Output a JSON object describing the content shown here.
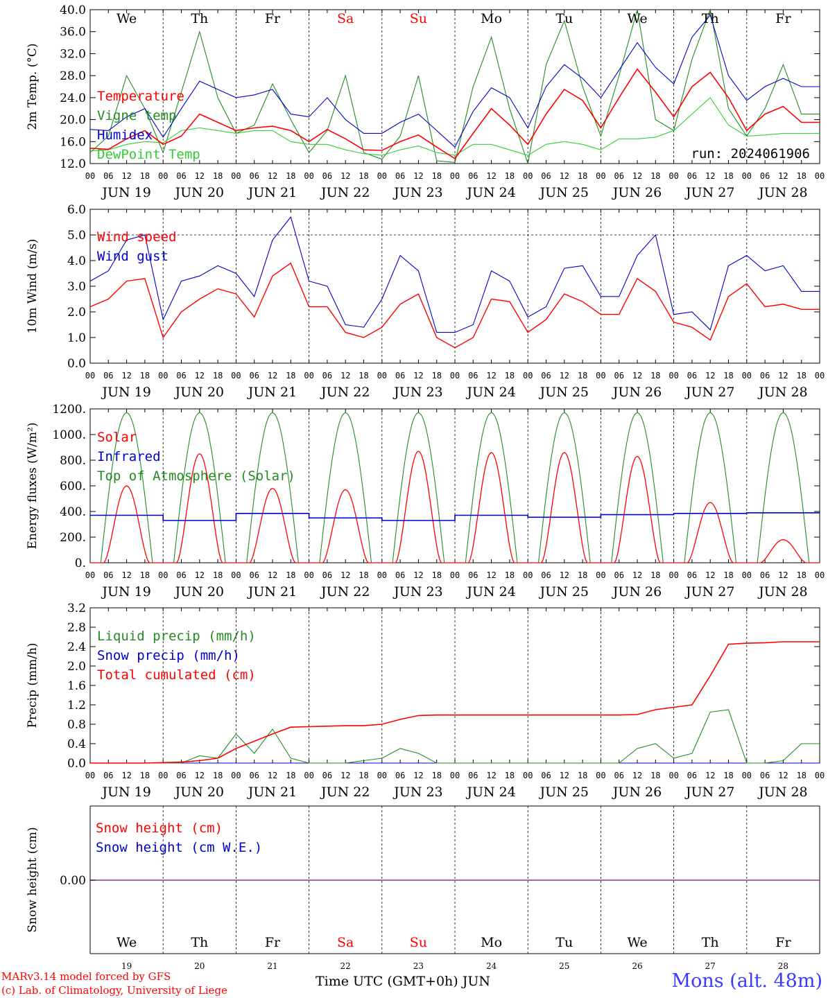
{
  "chart_data": [
    {
      "type": "line",
      "panel": "temperature",
      "ylabel": "2m Temp. (°C)",
      "ylim": [
        12,
        40
      ],
      "yticks": [
        "12.0",
        "16.0",
        "20.0",
        "24.0",
        "28.0",
        "32.0",
        "36.0",
        "40.0"
      ],
      "run_label": "run: 2024061906",
      "x_hours": [
        0,
        6,
        12,
        18,
        24,
        30,
        36,
        42,
        48,
        54,
        60,
        66,
        72,
        78,
        84,
        90,
        96,
        102,
        108,
        114,
        120,
        126,
        132,
        138,
        144,
        150,
        156,
        162,
        168,
        174,
        180,
        186,
        192,
        198,
        204,
        210,
        216,
        222,
        228,
        234
      ],
      "series": [
        {
          "name": "Temperature",
          "color": "#ff0000",
          "values": [
            14.8,
            14.6,
            16.5,
            18.0,
            15.5,
            17.0,
            21.0,
            19.5,
            18.0,
            18.5,
            18.8,
            18.0,
            16.0,
            18.2,
            16.5,
            14.5,
            14.4,
            16.0,
            17.2,
            15.0,
            12.9,
            17.5,
            22.0,
            19.0,
            15.5,
            21.0,
            25.5,
            23.5,
            18.5,
            24.0,
            29.2,
            25.0,
            20.5,
            26.0,
            28.6,
            24.0,
            18.0,
            21.0,
            22.4,
            19.5
          ]
        },
        {
          "name": "Vigne temp",
          "color": "#228b22",
          "values": [
            14.0,
            17.0,
            28.0,
            22.0,
            14.0,
            25.0,
            36.0,
            24.0,
            17.5,
            19.0,
            26.5,
            20.0,
            14.0,
            18.0,
            28.0,
            14.0,
            12.8,
            17.0,
            28.0,
            12.5,
            12.2,
            26.0,
            35.0,
            22.0,
            12.0,
            30.0,
            38.0,
            26.0,
            17.0,
            28.0,
            40.0,
            20.0,
            18.0,
            31.0,
            41.0,
            22.0,
            17.0,
            22.0,
            30.0,
            21.0
          ]
        },
        {
          "name": "Humidex",
          "color": "#0000cd",
          "values": [
            18.2,
            18.0,
            20.5,
            22.0,
            16.8,
            22.0,
            27.0,
            25.5,
            24.0,
            24.5,
            25.5,
            21.0,
            20.5,
            24.0,
            20.0,
            17.5,
            17.5,
            19.5,
            21.0,
            18.0,
            15.0,
            21.5,
            25.8,
            24.0,
            18.5,
            26.0,
            30.0,
            27.5,
            24.0,
            29.0,
            34.0,
            29.5,
            26.5,
            35.0,
            39.0,
            28.0,
            23.5,
            26.0,
            27.5,
            26.0
          ]
        },
        {
          "name": "DewPoint Temp",
          "color": "#32cd32",
          "values": [
            14.3,
            14.5,
            15.5,
            16.0,
            15.8,
            18.0,
            18.5,
            18.0,
            17.5,
            18.0,
            18.0,
            16.0,
            15.5,
            15.5,
            14.5,
            13.8,
            13.5,
            14.5,
            15.2,
            14.0,
            13.5,
            15.5,
            15.5,
            14.5,
            13.5,
            15.5,
            16.0,
            15.5,
            14.5,
            16.5,
            16.5,
            16.8,
            18.0,
            21.0,
            24.0,
            19.0,
            17.0,
            17.2,
            17.5,
            17.5
          ]
        }
      ]
    },
    {
      "type": "line",
      "panel": "wind",
      "ylabel": "10m Wind (m/s)",
      "ylim": [
        0,
        6
      ],
      "yticks": [
        "0.0",
        "1.0",
        "2.0",
        "3.0",
        "4.0",
        "5.0",
        "6.0"
      ],
      "x_hours": [
        0,
        6,
        12,
        18,
        24,
        30,
        36,
        42,
        48,
        54,
        60,
        66,
        72,
        78,
        84,
        90,
        96,
        102,
        108,
        114,
        120,
        126,
        132,
        138,
        144,
        150,
        156,
        162,
        168,
        174,
        180,
        186,
        192,
        198,
        204,
        210,
        216,
        222,
        228,
        234
      ],
      "series": [
        {
          "name": "Wind speed",
          "color": "#ff0000",
          "values": [
            2.2,
            2.5,
            3.2,
            3.3,
            1.0,
            2.0,
            2.5,
            2.9,
            2.7,
            1.8,
            3.4,
            3.9,
            2.2,
            2.2,
            1.2,
            1.0,
            1.4,
            2.3,
            2.7,
            1.0,
            0.6,
            1.0,
            2.5,
            2.4,
            1.2,
            1.7,
            2.7,
            2.4,
            1.9,
            1.9,
            3.3,
            2.8,
            1.6,
            1.4,
            0.9,
            2.6,
            3.1,
            2.2,
            2.3,
            2.1
          ]
        },
        {
          "name": "Wind gust",
          "color": "#0000cd",
          "values": [
            3.2,
            3.6,
            4.8,
            5.0,
            1.7,
            3.2,
            3.4,
            3.8,
            3.5,
            2.6,
            4.8,
            5.7,
            3.2,
            3.0,
            1.5,
            1.4,
            2.5,
            4.2,
            3.6,
            1.2,
            1.2,
            1.5,
            3.6,
            3.2,
            1.8,
            2.2,
            3.7,
            3.8,
            2.6,
            2.6,
            4.2,
            5.0,
            1.9,
            2.0,
            1.3,
            3.8,
            4.2,
            3.6,
            3.8,
            2.8
          ]
        }
      ]
    },
    {
      "type": "line",
      "panel": "energy",
      "ylabel": "Energy fluxes (W/m²)",
      "ylim": [
        0,
        1200
      ],
      "yticks": [
        "0.",
        "200.",
        "400.",
        "600.",
        "800.",
        "1000.",
        "1200."
      ],
      "series": [
        {
          "name": "Solar",
          "color": "#ff0000",
          "daily_peak": [
            600,
            850,
            580,
            570,
            870,
            860,
            860,
            830,
            470,
            180
          ]
        },
        {
          "name": "Infrared",
          "color": "#0000cd",
          "daily_level": [
            370,
            330,
            385,
            350,
            330,
            370,
            355,
            375,
            385,
            390
          ]
        },
        {
          "name": "Top of Atmosphere (Solar)",
          "color": "#228b22",
          "daily_peak": [
            1170,
            1170,
            1170,
            1170,
            1170,
            1170,
            1170,
            1170,
            1170,
            1170
          ]
        }
      ]
    },
    {
      "type": "line",
      "panel": "precip",
      "ylabel": "Precip (mm/h)",
      "ylim": [
        0,
        3.2
      ],
      "yticks": [
        "0.0",
        "0.4",
        "0.8",
        "1.2",
        "1.6",
        "2.0",
        "2.4",
        "2.8",
        "3.2"
      ],
      "x_hours": [
        0,
        6,
        12,
        18,
        24,
        30,
        36,
        42,
        48,
        54,
        60,
        66,
        72,
        78,
        84,
        90,
        96,
        102,
        108,
        114,
        120,
        126,
        132,
        138,
        144,
        150,
        156,
        162,
        168,
        174,
        180,
        186,
        192,
        198,
        204,
        210,
        216,
        222,
        228,
        234
      ],
      "series": [
        {
          "name": "Liquid precip (mm/h)",
          "color": "#228b22",
          "values": [
            0,
            0,
            0,
            0,
            0,
            0,
            0.15,
            0.1,
            0.6,
            0.2,
            0.7,
            0.1,
            0,
            0,
            0,
            0.05,
            0.1,
            0.3,
            0.2,
            0,
            0,
            0,
            0,
            0,
            0,
            0,
            0,
            0,
            0,
            0,
            0.3,
            0.4,
            0.1,
            0.2,
            1.05,
            1.1,
            0,
            0,
            0.05,
            0.4
          ]
        },
        {
          "name": "Snow precip (mm/h)",
          "color": "#0000cd",
          "values": [
            0,
            0,
            0,
            0,
            0,
            0,
            0,
            0,
            0,
            0,
            0,
            0,
            0,
            0,
            0,
            0,
            0,
            0,
            0,
            0,
            0,
            0,
            0,
            0,
            0,
            0,
            0,
            0,
            0,
            0,
            0,
            0,
            0,
            0,
            0,
            0,
            0,
            0,
            0,
            0
          ]
        },
        {
          "name": "Total cumulated (cm)",
          "color": "#ff0000",
          "values": [
            0,
            0,
            0,
            0,
            0.01,
            0.02,
            0.05,
            0.1,
            0.3,
            0.45,
            0.6,
            0.74,
            0.75,
            0.76,
            0.77,
            0.77,
            0.8,
            0.9,
            0.98,
            0.99,
            0.99,
            0.99,
            0.99,
            0.99,
            0.99,
            0.99,
            0.99,
            0.99,
            0.99,
            0.99,
            1.0,
            1.1,
            1.15,
            1.2,
            1.8,
            2.45,
            2.47,
            2.48,
            2.5,
            2.5
          ]
        }
      ]
    },
    {
      "type": "line",
      "panel": "snow",
      "ylabel": "Snow height (cm)",
      "yticks": [
        "0.00"
      ],
      "series": [
        {
          "name": "Snow height (cm)",
          "color": "#ff0000",
          "values": [
            0
          ]
        },
        {
          "name": "Snow height (cm W.E.)",
          "color": "#0000cd",
          "values": [
            0
          ]
        }
      ]
    }
  ],
  "x_axis": {
    "hour_ticks": [
      "00",
      "06",
      "12",
      "18"
    ],
    "end_tick": "00",
    "date_labels": [
      "JUN 19",
      "JUN 20",
      "JUN 21",
      "JUN 22",
      "JUN 23",
      "JUN 24",
      "JUN 25",
      "JUN 26",
      "JUN 27",
      "JUN 28"
    ],
    "weekdays": [
      "We",
      "Th",
      "Fr",
      "Sa",
      "Su",
      "Mo",
      "Tu",
      "We",
      "Th",
      "Fr"
    ],
    "weekday_colors": [
      "#000000",
      "#000000",
      "#000000",
      "#ff0000",
      "#ff0000",
      "#000000",
      "#000000",
      "#000000",
      "#000000",
      "#000000"
    ],
    "day_numbers": [
      "19",
      "20",
      "21",
      "22",
      "23",
      "24",
      "25",
      "26",
      "27",
      "28"
    ],
    "xlabel": "Time UTC (GMT+0h) JUN"
  },
  "footer": {
    "model": "MARv3.14 model forced by GFS",
    "lab": "(c) Lab. of Climatology, University of Liege",
    "station": "Mons (alt. 48m)"
  }
}
